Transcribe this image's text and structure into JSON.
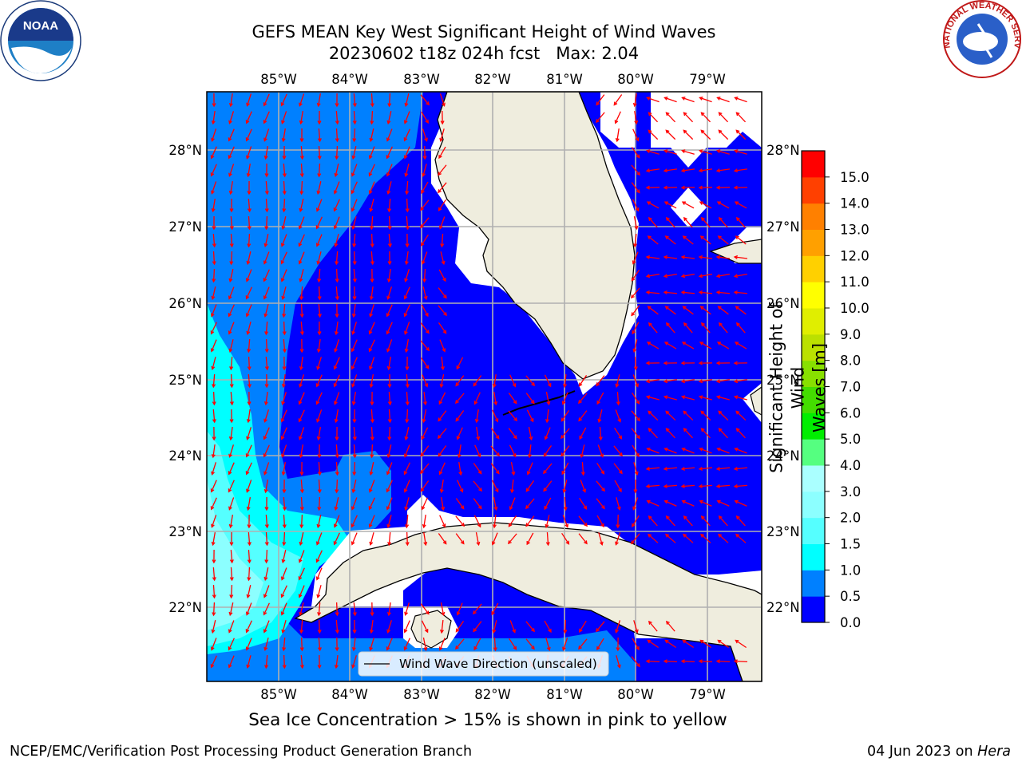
{
  "header": {
    "title_line1": "GEFS MEAN Key West Significant Height of Wind Waves",
    "title_line2": "20230602 t18z 024h fcst   Max: 2.04"
  },
  "logos": {
    "left": {
      "name": "noaa-logo",
      "text": "NOAA"
    },
    "right": {
      "name": "national-weather-service-logo",
      "text": "NATIONAL WEATHER SERVICE"
    }
  },
  "map": {
    "lon_labels": [
      "85°W",
      "84°W",
      "83°W",
      "82°W",
      "81°W",
      "80°W",
      "79°W"
    ],
    "lat_labels": [
      "28°N",
      "27°N",
      "26°N",
      "25°N",
      "24°N",
      "23°N",
      "22°N"
    ],
    "legend_text": "Wind Wave Direction (unscaled)",
    "colors": {
      "land": "#efedde",
      "missing": "#ffffff",
      "band_0_05": "#0000ff",
      "band_05_1": "#0080ff",
      "band_1_15": "#00ffff",
      "band_15_2": "#55ffff",
      "band_2_25": "#8cffff",
      "arrow": "#ff0000",
      "grid": "#b0b0b0"
    }
  },
  "colorbar": {
    "label_line1": "Significant Height of Wind",
    "label_line2": "Waves [m]",
    "ticks": [
      "0.0",
      "0.5",
      "1.0",
      "1.5",
      "2.0",
      "3.0",
      "4.0",
      "5.0",
      "6.0",
      "7.0",
      "8.0",
      "9.0",
      "10.0",
      "11.0",
      "12.0",
      "13.0",
      "14.0",
      "15.0"
    ],
    "colors": [
      "#0000ff",
      "#0080ff",
      "#00ffff",
      "#55ffff",
      "#8cffff",
      "#aaffff",
      "#55ff80",
      "#00ee00",
      "#44dd00",
      "#88e000",
      "#bbe000",
      "#e0ee00",
      "#ffff00",
      "#ffd000",
      "#ffa000",
      "#ff8000",
      "#ff4000",
      "#ff0000"
    ]
  },
  "note": "Sea Ice Concentration > 15% is shown in pink to yellow",
  "footer": {
    "left": "NCEP/EMC/Verification Post Processing Product Generation Branch",
    "right_prefix": "04 Jun 2023 on ",
    "right_host": "Hera"
  }
}
